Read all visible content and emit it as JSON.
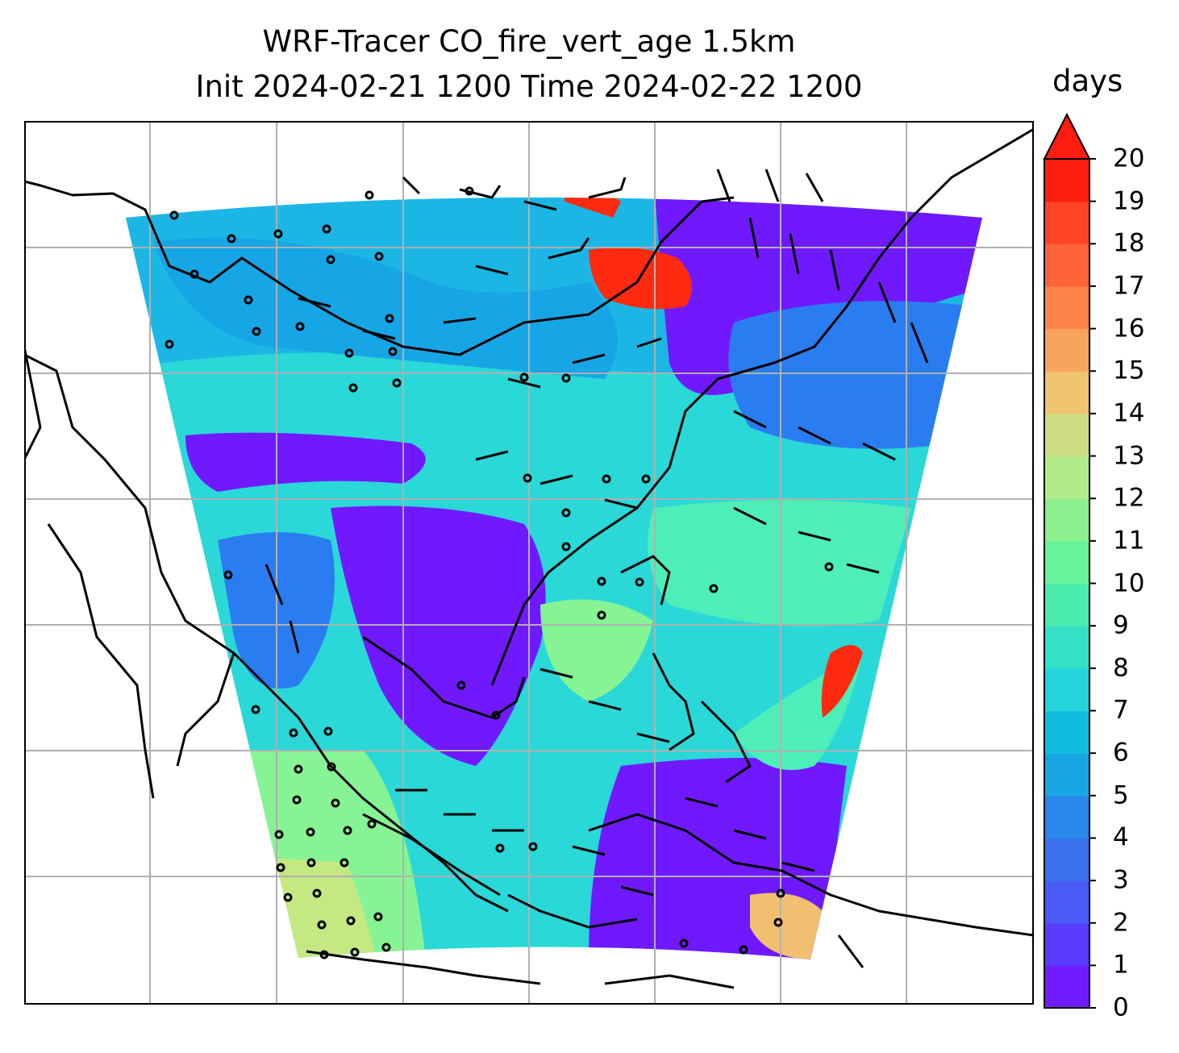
{
  "title": {
    "line1": "WRF-Tracer CO_fire_vert_age 1.5km",
    "line2": "Init 2024-02-21 1200 Time 2024-02-22 1200"
  },
  "colorbar": {
    "unit": "days",
    "levels": [
      "0",
      "1",
      "2",
      "3",
      "4",
      "5",
      "6",
      "7",
      "8",
      "9",
      "10",
      "11",
      "12",
      "13",
      "14",
      "15",
      "16",
      "17",
      "18",
      "19",
      "20"
    ],
    "extend": "max",
    "colors": [
      "#6f1cff",
      "#5a3cff",
      "#4a5cf8",
      "#3c72f0",
      "#2a88ea",
      "#16a6e6",
      "#10bde0",
      "#24d3dc",
      "#34e0c8",
      "#4aecae",
      "#66f49c",
      "#8cf08e",
      "#b2ec8a",
      "#d0dc84",
      "#f0c470",
      "#f8a45a",
      "#ff8448",
      "#ff6438",
      "#ff4424",
      "#ff1c10"
    ]
  },
  "map": {
    "gridlines": true,
    "field_palette": [
      "#7019ff",
      "#2a7df0",
      "#1cb6e4",
      "#2ad8d8",
      "#4eeeb8",
      "#86f494",
      "#c4e882",
      "#f0c070",
      "#ff2a10"
    ]
  }
}
